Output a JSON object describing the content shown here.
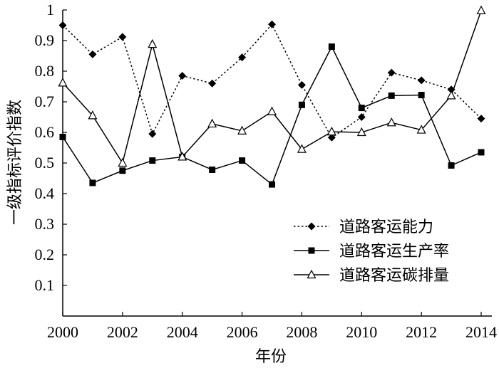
{
  "chart_data": {
    "type": "line",
    "xlabel": "年份",
    "ylabel": "一级指标评价指数",
    "xlim": [
      2000,
      2014
    ],
    "ylim": [
      0,
      1
    ],
    "x_ticks": [
      "2000",
      "2002",
      "2004",
      "2006",
      "2008",
      "2010",
      "2012",
      "2014"
    ],
    "y_ticks": [
      "0.1",
      "0.2",
      "0.3",
      "0.4",
      "0.5",
      "0.6",
      "0.7",
      "0.8",
      "0.9",
      "1"
    ],
    "x": [
      2000,
      2001,
      2002,
      2003,
      2004,
      2005,
      2006,
      2007,
      2008,
      2009,
      2010,
      2011,
      2012,
      2013,
      2014
    ],
    "grid": false,
    "legend_position": "right",
    "series": [
      {
        "name": "道路客运能力",
        "marker": "diamond",
        "line_style": "dotted",
        "values": [
          0.95,
          0.855,
          0.912,
          0.595,
          0.785,
          0.76,
          0.845,
          0.953,
          0.755,
          0.583,
          0.65,
          0.795,
          0.77,
          0.74,
          0.645
        ]
      },
      {
        "name": "道路客运生产率",
        "marker": "square",
        "line_style": "solid",
        "values": [
          0.585,
          0.435,
          0.475,
          0.508,
          0.52,
          0.478,
          0.508,
          0.43,
          0.69,
          0.88,
          0.68,
          0.72,
          0.722,
          0.492,
          0.535
        ]
      },
      {
        "name": "道路客运碳排量",
        "marker": "triangle",
        "line_style": "solid",
        "values": [
          0.762,
          0.655,
          0.5,
          0.888,
          0.52,
          0.628,
          0.605,
          0.668,
          0.545,
          0.602,
          0.6,
          0.632,
          0.608,
          0.72,
          0.998
        ]
      }
    ]
  }
}
